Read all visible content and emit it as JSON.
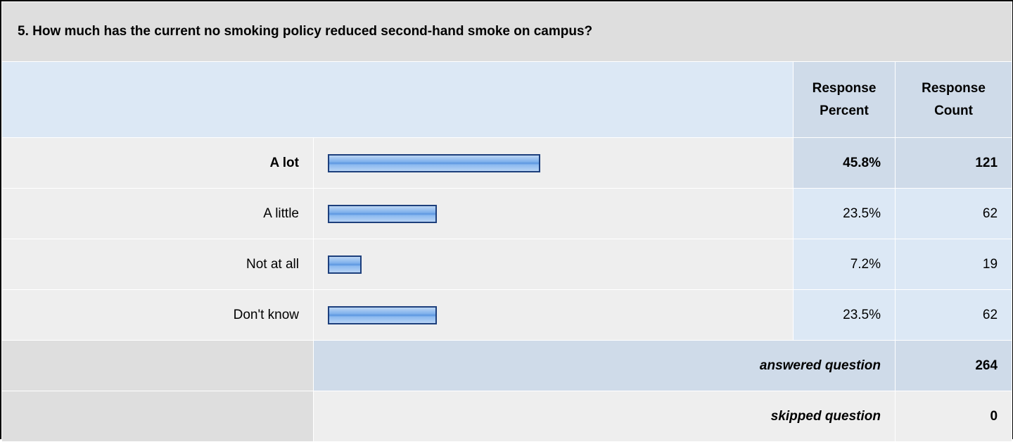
{
  "question": "5. How much has the current no smoking policy reduced second-hand smoke on campus?",
  "headers": {
    "percent": "Response Percent",
    "count": "Response Count"
  },
  "rows": [
    {
      "label": "A lot",
      "percent": {
        "value": 45.8,
        "label": "45.8%"
      },
      "count": 121
    },
    {
      "label": "A little",
      "percent": {
        "value": 23.5,
        "label": "23.5%"
      },
      "count": 62
    },
    {
      "label": "Not at all",
      "percent": {
        "value": 7.2,
        "label": "7.2%"
      },
      "count": 19
    },
    {
      "label": "Don't know",
      "percent": {
        "value": 23.5,
        "label": "23.5%"
      },
      "count": 62
    }
  ],
  "footer": [
    {
      "label": "answered question",
      "count": 264
    },
    {
      "label": "skipped question",
      "count": 0
    }
  ]
}
